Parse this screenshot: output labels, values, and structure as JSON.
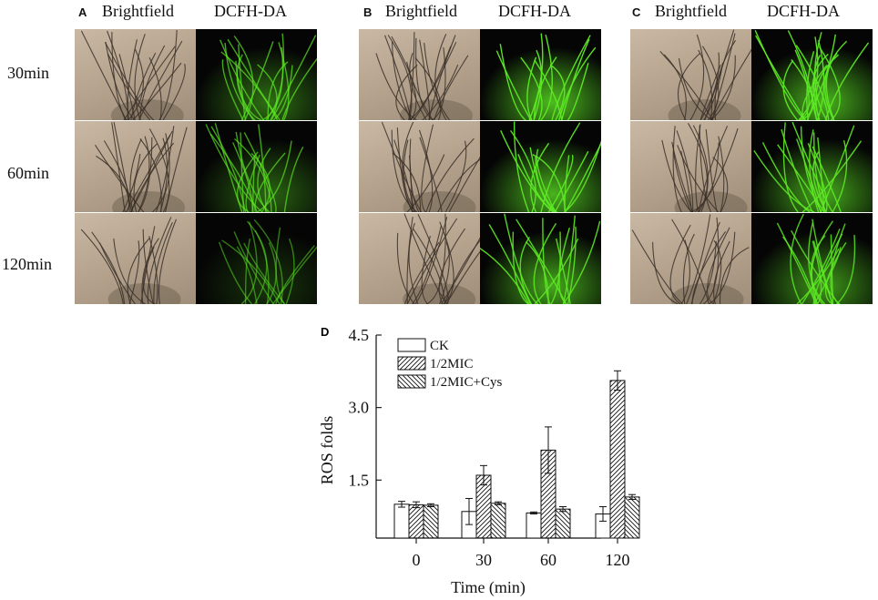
{
  "panels": [
    {
      "letter": "A",
      "columns": [
        "Brightfield",
        "DCFH-DA"
      ],
      "fluor_intensity": [
        0.55,
        0.5,
        0.25
      ]
    },
    {
      "letter": "B",
      "columns": [
        "Brightfield",
        "DCFH-DA"
      ],
      "fluor_intensity": [
        0.95,
        0.9,
        0.85
      ]
    },
    {
      "letter": "C",
      "columns": [
        "Brightfield",
        "DCFH-DA"
      ],
      "fluor_intensity": [
        0.9,
        0.85,
        0.75
      ]
    }
  ],
  "row_labels": [
    "30min",
    "60min",
    "120min"
  ],
  "colors": {
    "fluor": "#5ee825",
    "hyphae": "#3a3028",
    "bf_bg": "#bba996"
  },
  "chart_data": {
    "panel_letter": "D",
    "type": "bar",
    "categories": [
      "0",
      "30",
      "60",
      "120"
    ],
    "series": [
      {
        "name": "CK",
        "pattern": "open",
        "values": [
          1.0,
          0.85,
          0.82,
          0.8
        ],
        "errors": [
          0.06,
          0.27,
          0.02,
          0.15
        ]
      },
      {
        "name": "1/2MIC",
        "pattern": "hatch-forward",
        "values": [
          0.99,
          1.6,
          2.12,
          3.56
        ],
        "errors": [
          0.06,
          0.2,
          0.48,
          0.2
        ]
      },
      {
        "name": "1/2MIC+Cys",
        "pattern": "hatch-back",
        "values": [
          0.98,
          1.02,
          0.9,
          1.15
        ],
        "errors": [
          0.03,
          0.03,
          0.05,
          0.05
        ]
      }
    ],
    "xlabel": "Time (min)",
    "ylabel": "ROS folds",
    "yticks": [
      1.5,
      3.0,
      4.5
    ],
    "ytick_labels": [
      "1.5",
      "3.0",
      "4.5"
    ],
    "ylim": [
      0.3,
      4.5
    ],
    "legend": "top-left",
    "grid": false
  }
}
